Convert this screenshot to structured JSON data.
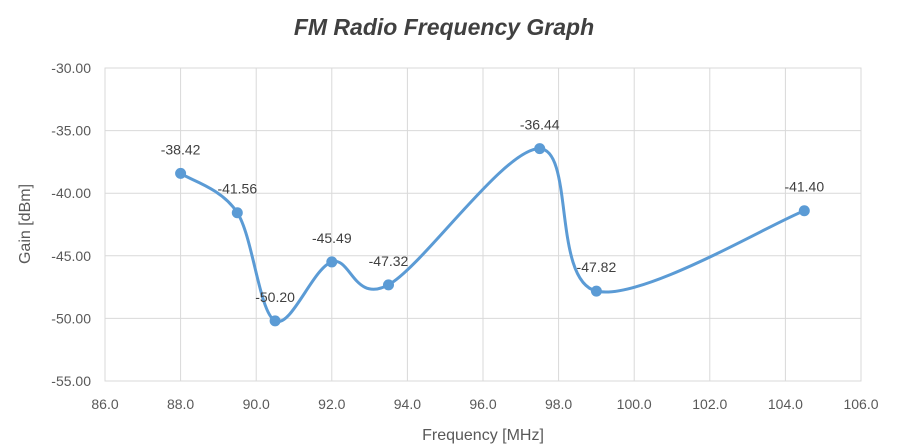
{
  "chart_data": {
    "type": "line",
    "title": "FM Radio Frequency Graph",
    "xlabel": "Frequency [MHz]",
    "ylabel": "Gain [dBm]",
    "xlim": [
      86,
      106
    ],
    "ylim": [
      -55,
      -30
    ],
    "x_ticks": [
      "86.0",
      "88.0",
      "90.0",
      "92.0",
      "94.0",
      "96.0",
      "98.0",
      "100.0",
      "102.0",
      "104.0",
      "106.0"
    ],
    "y_ticks": [
      "-30.00",
      "-35.00",
      "-40.00",
      "-45.00",
      "-50.00",
      "-55.00"
    ],
    "grid": true,
    "smooth": true,
    "series_color": "#5b9bd5",
    "series": [
      {
        "x": [
          88.0,
          89.5,
          90.5,
          92.0,
          93.5,
          97.5,
          99.0,
          104.5
        ],
        "values": [
          -38.42,
          -41.56,
          -50.2,
          -45.49,
          -47.32,
          -36.44,
          -47.82,
          -41.4
        ],
        "labels": [
          "-38.42",
          "-41.56",
          "-50.20",
          "-45.49",
          "-47.32",
          "-36.44",
          "-47.82",
          "-41.40"
        ]
      }
    ]
  }
}
